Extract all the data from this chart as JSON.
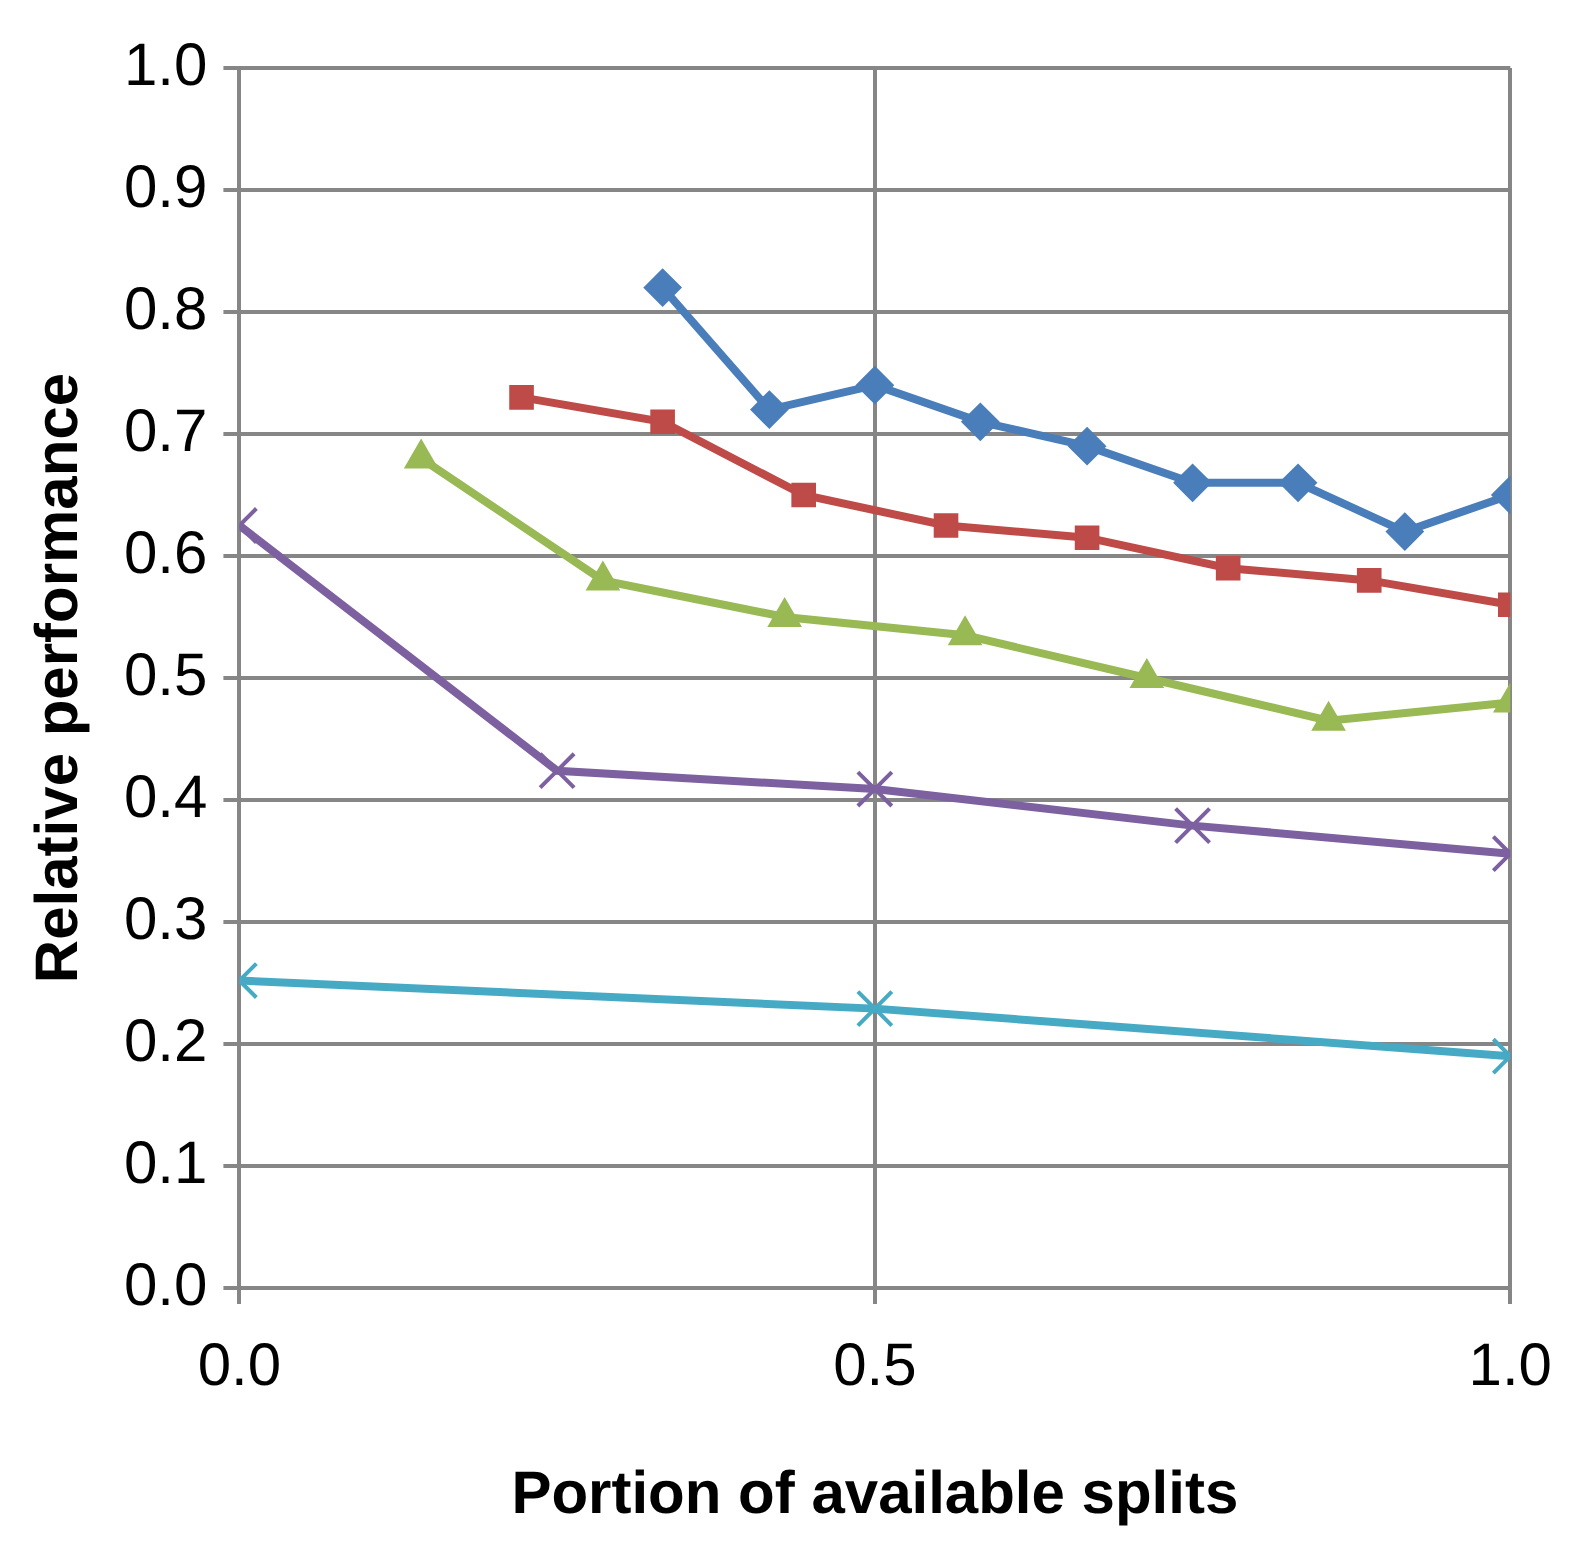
{
  "chart_data": {
    "type": "line",
    "xlabel": "Portion of available splits",
    "ylabel": "Relative performance",
    "xlim": [
      0,
      1
    ],
    "xticks": [
      {
        "value": 0,
        "label": "0.0"
      },
      {
        "value": 0.5,
        "label": "0.5"
      },
      {
        "value": 1,
        "label": "1.0"
      }
    ],
    "ylim": [
      0,
      1
    ],
    "yticks": [
      {
        "value": 0,
        "label": "0.0"
      },
      {
        "value": 0.1,
        "label": "0.1"
      },
      {
        "value": 0.2,
        "label": "0.2"
      },
      {
        "value": 0.3,
        "label": "0.3"
      },
      {
        "value": 0.4,
        "label": "0.4"
      },
      {
        "value": 0.5,
        "label": "0.5"
      },
      {
        "value": 0.6,
        "label": "0.6"
      },
      {
        "value": 0.7,
        "label": "0.7"
      },
      {
        "value": 0.8,
        "label": "0.8"
      },
      {
        "value": 0.9,
        "label": "0.9"
      },
      {
        "value": 1,
        "label": "1.0"
      }
    ],
    "grid": true,
    "line_style": "solid",
    "series": [
      {
        "color": "#4a7ebb",
        "marker": "diamond",
        "x": [
          0.333,
          0.417,
          0.5,
          0.583,
          0.667,
          0.75,
          0.833,
          0.917,
          1
        ],
        "values": [
          0.82,
          0.72,
          0.74,
          0.71,
          0.69,
          0.66,
          0.66,
          0.62,
          0.65
        ]
      },
      {
        "color": "#be4b48",
        "marker": "square",
        "x": [
          0.222,
          0.333,
          0.444,
          0.556,
          0.667,
          0.778,
          0.889,
          1
        ],
        "values": [
          0.73,
          0.71,
          0.65,
          0.625,
          0.615,
          0.59,
          0.58,
          0.56
        ]
      },
      {
        "color": "#98b954",
        "marker": "triangle",
        "x": [
          0.143,
          0.286,
          0.429,
          0.571,
          0.714,
          0.857,
          1
        ],
        "values": [
          0.68,
          0.58,
          0.55,
          0.535,
          0.5,
          0.465,
          0.48
        ]
      },
      {
        "color": "#7d60a0",
        "marker": "cross",
        "x": [
          0,
          0.25,
          0.5,
          0.75,
          1
        ],
        "values": [
          0.625,
          0.424,
          0.409,
          0.379,
          0.356
        ]
      },
      {
        "color": "#46aac5",
        "marker": "cross",
        "x": [
          0,
          0.5,
          1
        ],
        "values": [
          0.252,
          0.229,
          0.19
        ]
      }
    ]
  }
}
